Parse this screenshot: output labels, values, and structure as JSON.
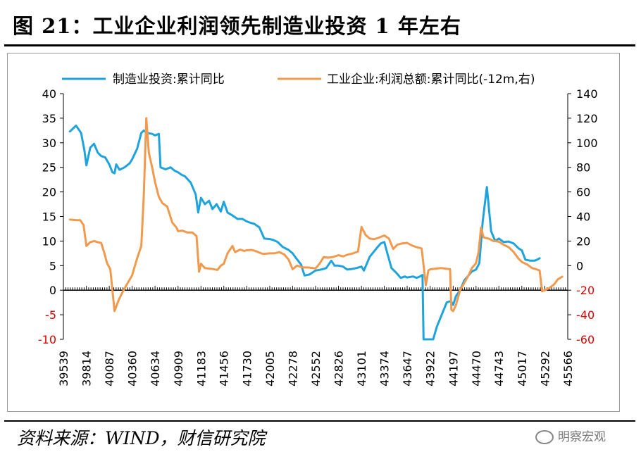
{
  "header": {
    "title": "图 21：工业企业利润领先制造业投资 1 年左右"
  },
  "footer": {
    "source": "资料来源：WIND，财信研究院",
    "watermark": "明察宏观"
  },
  "colors": {
    "blue": "#1FA3DC",
    "orange": "#F19A4E",
    "negative_tick": "#E00000",
    "axis": "#000000"
  },
  "chart_data": {
    "type": "line",
    "x_axis": {
      "ticks": [
        39539,
        39814,
        40087,
        40360,
        40634,
        40909,
        41183,
        41456,
        41730,
        42005,
        42278,
        42552,
        42826,
        43101,
        43374,
        43647,
        43922,
        44197,
        44470,
        44743,
        45017,
        45292,
        45566
      ],
      "range": [
        39539,
        45566
      ]
    },
    "y_axis_left": {
      "ticks": [
        40,
        35,
        30,
        25,
        20,
        15,
        10,
        5,
        0,
        -5,
        -10
      ],
      "range": [
        -10,
        40
      ]
    },
    "y_axis_right": {
      "ticks": [
        140,
        120,
        100,
        80,
        60,
        40,
        20,
        0,
        -20,
        -40,
        -60
      ],
      "range": [
        -60,
        140
      ]
    },
    "series": [
      {
        "name": "制造业投资:累计同比",
        "axis": "left",
        "color": "#1FA3DC",
        "points": [
          [
            39617,
            32.3
          ],
          [
            39690,
            33.5
          ],
          [
            39750,
            32.0
          ],
          [
            39790,
            28.5
          ],
          [
            39814,
            25.4
          ],
          [
            39860,
            29.0
          ],
          [
            39905,
            29.8
          ],
          [
            39950,
            28.0
          ],
          [
            39990,
            27.3
          ],
          [
            40040,
            27.0
          ],
          [
            40087,
            25.6
          ],
          [
            40125,
            24.0
          ],
          [
            40150,
            23.8
          ],
          [
            40170,
            25.6
          ],
          [
            40210,
            24.5
          ],
          [
            40270,
            25.0
          ],
          [
            40330,
            25.8
          ],
          [
            40360,
            26.6
          ],
          [
            40420,
            28.8
          ],
          [
            40470,
            32.0
          ],
          [
            40500,
            32.5
          ],
          [
            40540,
            32.0
          ],
          [
            40600,
            31.8
          ],
          [
            40634,
            31.5
          ],
          [
            40680,
            31.8
          ],
          [
            40700,
            25.0
          ],
          [
            40760,
            24.6
          ],
          [
            40820,
            25.0
          ],
          [
            40870,
            24.3
          ],
          [
            40909,
            24.0
          ],
          [
            40950,
            23.5
          ],
          [
            40990,
            23.2
          ],
          [
            41060,
            21.9
          ],
          [
            41120,
            19.5
          ],
          [
            41150,
            15.8
          ],
          [
            41183,
            18.8
          ],
          [
            41230,
            17.5
          ],
          [
            41280,
            18.2
          ],
          [
            41320,
            16.5
          ],
          [
            41370,
            17.5
          ],
          [
            41420,
            16.0
          ],
          [
            41456,
            18.0
          ],
          [
            41500,
            15.8
          ],
          [
            41560,
            15.2
          ],
          [
            41620,
            14.5
          ],
          [
            41680,
            14.5
          ],
          [
            41730,
            14.0
          ],
          [
            41760,
            13.8
          ],
          [
            41820,
            13.5
          ],
          [
            41880,
            12.8
          ],
          [
            41940,
            10.5
          ],
          [
            42005,
            10.4
          ],
          [
            42050,
            10.2
          ],
          [
            42100,
            9.8
          ],
          [
            42160,
            8.8
          ],
          [
            42230,
            8.2
          ],
          [
            42278,
            7.5
          ],
          [
            42320,
            6.5
          ],
          [
            42380,
            5.2
          ],
          [
            42420,
            3.0
          ],
          [
            42480,
            3.2
          ],
          [
            42552,
            4.0
          ],
          [
            42620,
            4.2
          ],
          [
            42680,
            4.5
          ],
          [
            42740,
            6.0
          ],
          [
            42780,
            5.0
          ],
          [
            42826,
            5.0
          ],
          [
            42880,
            4.8
          ],
          [
            42930,
            4.2
          ],
          [
            42980,
            4.3
          ],
          [
            43040,
            4.5
          ],
          [
            43101,
            4.8
          ],
          [
            43130,
            4.0
          ],
          [
            43200,
            6.8
          ],
          [
            43280,
            8.5
          ],
          [
            43330,
            9.5
          ],
          [
            43374,
            9.8
          ],
          [
            43410,
            7.5
          ],
          [
            43460,
            4.5
          ],
          [
            43520,
            3.5
          ],
          [
            43570,
            2.5
          ],
          [
            43620,
            2.8
          ],
          [
            43647,
            2.6
          ],
          [
            43720,
            2.8
          ],
          [
            43760,
            2.5
          ],
          [
            43800,
            2.8
          ],
          [
            43830,
            3.1
          ],
          [
            43843,
            -10.0
          ],
          [
            43958,
            -10.0
          ],
          [
            44000,
            -7.5
          ],
          [
            44060,
            -5.0
          ],
          [
            44120,
            -2.5
          ],
          [
            44170,
            -2.2
          ],
          [
            44197,
            -3.0
          ],
          [
            44230,
            -1.2
          ],
          [
            44280,
            0.0
          ],
          [
            44330,
            2.0
          ],
          [
            44420,
            3.8
          ],
          [
            44470,
            4.2
          ],
          [
            44510,
            5.5
          ],
          [
            44550,
            14.0
          ],
          [
            44600,
            21.0
          ],
          [
            44650,
            12.0
          ],
          [
            44700,
            10.0
          ],
          [
            44743,
            10.5
          ],
          [
            44800,
            9.8
          ],
          [
            44860,
            9.9
          ],
          [
            44920,
            9.5
          ],
          [
            44980,
            8.5
          ],
          [
            45017,
            8.1
          ],
          [
            45060,
            6.2
          ],
          [
            45120,
            6.0
          ],
          [
            45170,
            6.0
          ],
          [
            45200,
            6.2
          ],
          [
            45230,
            6.5
          ]
        ]
      },
      {
        "name": "工业企业:利润总额:累计同比(-12m,右)",
        "axis": "right",
        "color": "#F19A4E",
        "points": [
          [
            39617,
            37.5
          ],
          [
            39690,
            37.0
          ],
          [
            39740,
            37.0
          ],
          [
            39780,
            33.0
          ],
          [
            39814,
            16.0
          ],
          [
            39860,
            19.0
          ],
          [
            39905,
            20.0
          ],
          [
            39950,
            19.0
          ],
          [
            39990,
            18.5
          ],
          [
            40030,
            10.0
          ],
          [
            40060,
            2.0
          ],
          [
            40100,
            -3.0
          ],
          [
            40150,
            -37.0
          ],
          [
            40200,
            -28.0
          ],
          [
            40250,
            -21.0
          ],
          [
            40300,
            -15.0
          ],
          [
            40360,
            -8.0
          ],
          [
            40420,
            6.0
          ],
          [
            40470,
            16.0
          ],
          [
            40500,
            58.0
          ],
          [
            40530,
            120.0
          ],
          [
            40560,
            92.0
          ],
          [
            40600,
            80.0
          ],
          [
            40634,
            68.0
          ],
          [
            40680,
            56.0
          ],
          [
            40720,
            51.0
          ],
          [
            40780,
            48.0
          ],
          [
            40840,
            35.0
          ],
          [
            40890,
            31.0
          ],
          [
            40909,
            28.0
          ],
          [
            40960,
            28.5
          ],
          [
            41020,
            27.0
          ],
          [
            41080,
            27.0
          ],
          [
            41130,
            24.0
          ],
          [
            41160,
            -5.0
          ],
          [
            41183,
            1.5
          ],
          [
            41230,
            -2.0
          ],
          [
            41300,
            -2.5
          ],
          [
            41380,
            -3.5
          ],
          [
            41420,
            0.0
          ],
          [
            41456,
            1.5
          ],
          [
            41500,
            10.0
          ],
          [
            41560,
            16.0
          ],
          [
            41590,
            11.0
          ],
          [
            41650,
            13.0
          ],
          [
            41700,
            12.0
          ],
          [
            41730,
            12.5
          ],
          [
            41790,
            12.8
          ],
          [
            41850,
            11.5
          ],
          [
            41920,
            9.5
          ],
          [
            42005,
            10.0
          ],
          [
            42060,
            10.0
          ],
          [
            42120,
            11.0
          ],
          [
            42180,
            9.0
          ],
          [
            42230,
            5.0
          ],
          [
            42278,
            -3.0
          ],
          [
            42330,
            0.0
          ],
          [
            42400,
            -1.5
          ],
          [
            42460,
            -1.5
          ],
          [
            42520,
            -2.0
          ],
          [
            42552,
            -2.3
          ],
          [
            42600,
            1.5
          ],
          [
            42650,
            7.0
          ],
          [
            42700,
            6.5
          ],
          [
            42760,
            7.0
          ],
          [
            42826,
            8.5
          ],
          [
            42880,
            7.5
          ],
          [
            42940,
            9.0
          ],
          [
            43000,
            10.0
          ],
          [
            43060,
            11.5
          ],
          [
            43101,
            31.5
          ],
          [
            43150,
            25.0
          ],
          [
            43200,
            22.0
          ],
          [
            43250,
            21.5
          ],
          [
            43300,
            22.5
          ],
          [
            43374,
            24.5
          ],
          [
            43430,
            22.0
          ],
          [
            43480,
            13.5
          ],
          [
            43530,
            17.0
          ],
          [
            43580,
            18.0
          ],
          [
            43647,
            18.5
          ],
          [
            43700,
            16.5
          ],
          [
            43760,
            15.0
          ],
          [
            43820,
            14.0
          ],
          [
            43870,
            -16.0
          ],
          [
            43900,
            -4.0
          ],
          [
            43922,
            -3.0
          ],
          [
            43980,
            -2.5
          ],
          [
            44050,
            -2.0
          ],
          [
            44120,
            -2.5
          ],
          [
            44160,
            -3.0
          ],
          [
            44175,
            -36.0
          ],
          [
            44197,
            -37.0
          ],
          [
            44230,
            -32.0
          ],
          [
            44280,
            -20.0
          ],
          [
            44330,
            -14.0
          ],
          [
            44380,
            -8.0
          ],
          [
            44420,
            -2.0
          ],
          [
            44470,
            2.0
          ],
          [
            44500,
            11.0
          ],
          [
            44530,
            31.0
          ],
          [
            44560,
            23.0
          ],
          [
            44620,
            22.0
          ],
          [
            44680,
            20.0
          ],
          [
            44743,
            19.5
          ],
          [
            44800,
            17.0
          ],
          [
            44860,
            15.0
          ],
          [
            44920,
            11.0
          ],
          [
            44980,
            5.5
          ],
          [
            45017,
            3.0
          ],
          [
            45080,
            1.0
          ],
          [
            45140,
            -2.0
          ],
          [
            45190,
            -3.0
          ],
          [
            45230,
            -4.0
          ],
          [
            45260,
            -21.0
          ],
          [
            45292,
            -20.0
          ],
          [
            45340,
            -18.5
          ],
          [
            45400,
            -15.5
          ],
          [
            45450,
            -11.0
          ],
          [
            45500,
            -9.0
          ]
        ]
      }
    ]
  }
}
